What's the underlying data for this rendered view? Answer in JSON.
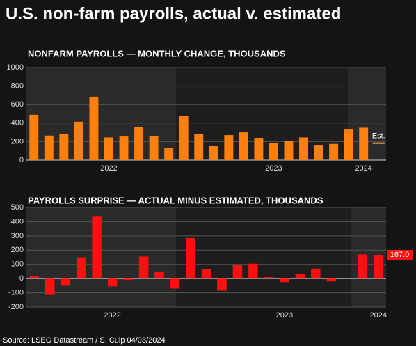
{
  "title": "U.S. non-farm payrolls, actual v. estimated",
  "source": "Source: LSEG Datastream / S. Culp 04/03/2024",
  "chart_data": [
    {
      "type": "bar",
      "title": "NONFARM PAYROLLS — MONTHLY CHANGE, THOUSANDS",
      "categories": [
        null,
        null,
        null,
        null,
        null,
        "2022",
        null,
        null,
        null,
        null,
        null,
        null,
        null,
        null,
        null,
        null,
        "2023",
        null,
        null,
        null,
        null,
        null,
        "2024",
        null
      ],
      "values": [
        490,
        265,
        280,
        415,
        685,
        245,
        255,
        355,
        260,
        135,
        480,
        280,
        150,
        270,
        300,
        240,
        185,
        205,
        245,
        165,
        175,
        335,
        350,
        190
      ],
      "color": "#ff7f0e",
      "estimate_color": "#ffa040",
      "annotation": "Est.",
      "ylim": [
        0,
        1000
      ],
      "yticks": [
        0,
        200,
        400,
        600,
        800,
        1000
      ],
      "grid": true
    },
    {
      "type": "bar",
      "title": "PAYROLLS SURPRISE — ACTUAL MINUS ESTIMATED, THOUSANDS",
      "categories": [
        null,
        null,
        null,
        null,
        null,
        "2022",
        null,
        null,
        null,
        null,
        null,
        null,
        null,
        null,
        null,
        null,
        "2023",
        null,
        null,
        null,
        null,
        null,
        "2024"
      ],
      "values": [
        15,
        -115,
        -50,
        150,
        440,
        -55,
        -10,
        155,
        50,
        -70,
        285,
        65,
        -85,
        95,
        105,
        10,
        -25,
        35,
        70,
        -20,
        0,
        170,
        167
      ],
      "value_labels": [
        null,
        null,
        null,
        null,
        null,
        null,
        null,
        null,
        null,
        null,
        null,
        null,
        null,
        null,
        null,
        null,
        null,
        null,
        null,
        null,
        null,
        null,
        "167.0"
      ],
      "color": "#ff1010",
      "ylim": [
        -200,
        500
      ],
      "yticks": [
        -200,
        -100,
        0,
        100,
        200,
        300,
        400,
        500
      ],
      "grid": true
    }
  ]
}
